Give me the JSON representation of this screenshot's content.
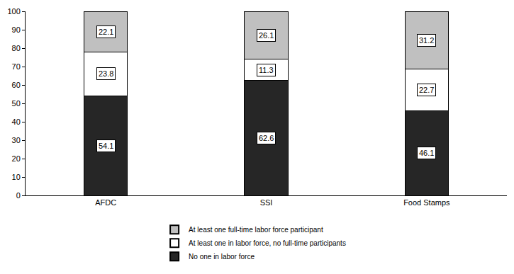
{
  "chart_data": {
    "type": "bar",
    "stacked": true,
    "data_labels": true,
    "grid": false,
    "legend": "bottom",
    "categories": [
      "AFDC",
      "SSI",
      "Food Stamps"
    ],
    "series": [
      {
        "name": "No one in labor force",
        "color": "#262626",
        "values": [
          54.1,
          62.6,
          46.1
        ]
      },
      {
        "name": "At least one in labor force, no full-time participants",
        "color": "#ffffff",
        "values": [
          23.8,
          11.3,
          22.7
        ]
      },
      {
        "name": "At least one full-time labor force participant",
        "color": "#c0c0c0",
        "values": [
          22.1,
          26.1,
          31.2
        ]
      }
    ],
    "ylim": [
      0,
      100
    ],
    "yticks": [
      0,
      10,
      20,
      30,
      40,
      50,
      60,
      70,
      80,
      90,
      100
    ]
  }
}
